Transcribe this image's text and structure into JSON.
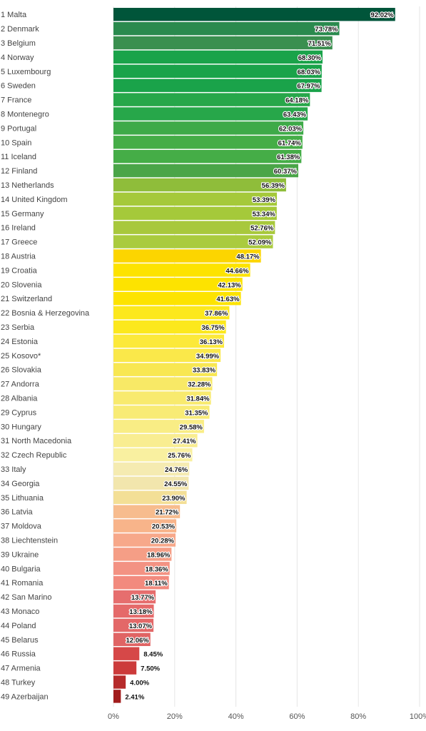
{
  "chart_data": {
    "type": "bar",
    "orientation": "horizontal",
    "xlim": [
      0,
      100
    ],
    "x_ticks": [
      "0%",
      "20%",
      "40%",
      "60%",
      "80%",
      "100%"
    ],
    "value_suffix": "%",
    "grid": true,
    "categories": [
      "1 Malta",
      "2 Denmark",
      "3 Belgium",
      "4 Norway",
      "5 Luxembourg",
      "6 Sweden",
      "7 France",
      "8 Montenegro",
      "9 Portugal",
      "10 Spain",
      "11 Iceland",
      "12 Finland",
      "13 Netherlands",
      "14 United Kingdom",
      "15 Germany",
      "16 Ireland",
      "17 Greece",
      "18 Austria",
      "19 Croatia",
      "20 Slovenia",
      "21 Switzerland",
      "22 Bosnia & Herzegovina",
      "23 Serbia",
      "24 Estonia",
      "25 Kosovo*",
      "26 Slovakia",
      "27 Andorra",
      "28 Albania",
      "29 Cyprus",
      "30 Hungary",
      "31 North Macedonia",
      "32 Czech Republic",
      "33 Italy",
      "34 Georgia",
      "35 Lithuania",
      "36 Latvia",
      "37 Moldova",
      "38 Liechtenstein",
      "39 Ukraine",
      "40 Bulgaria",
      "41 Romania",
      "42 San Marino",
      "43 Monaco",
      "44 Poland",
      "45 Belarus",
      "46 Russia",
      "47 Armenia",
      "48 Turkey",
      "49 Azerbaijan"
    ],
    "values": [
      92.02,
      73.78,
      71.51,
      68.3,
      68.03,
      67.97,
      64.18,
      63.43,
      62.03,
      61.74,
      61.38,
      60.37,
      56.39,
      53.39,
      53.34,
      52.76,
      52.09,
      48.17,
      44.66,
      42.13,
      41.63,
      37.86,
      36.75,
      36.13,
      34.99,
      33.83,
      32.28,
      31.84,
      31.35,
      29.58,
      27.41,
      25.76,
      24.76,
      24.55,
      23.9,
      21.72,
      20.53,
      20.28,
      18.96,
      18.36,
      18.11,
      13.77,
      13.18,
      13.07,
      12.06,
      8.45,
      7.5,
      4.0,
      2.41
    ],
    "colors": [
      "#00553a",
      "#2a8a4e",
      "#3a8f4f",
      "#1aa34a",
      "#1aa34a",
      "#1aa34a",
      "#27a74a",
      "#27a74a",
      "#3eaa48",
      "#45ad47",
      "#45ad47",
      "#4aa548",
      "#8fbd3a",
      "#a5c93a",
      "#a5c93a",
      "#a8c83c",
      "#aacb3e",
      "#fcd500",
      "#fde300",
      "#fde300",
      "#fde300",
      "#fce81d",
      "#fce81d",
      "#fce93a",
      "#fae84a",
      "#f8e752",
      "#f8e966",
      "#f8ea6e",
      "#f8eb75",
      "#f9ed85",
      "#f9ed91",
      "#f9f0a0",
      "#f5ebb1",
      "#f2e6ad",
      "#f3df96",
      "#f7bc8e",
      "#f8b48a",
      "#f7a88a",
      "#f59e86",
      "#f39283",
      "#f28a7e",
      "#e66e6e",
      "#e56a6a",
      "#e36868",
      "#e06464",
      "#d64848",
      "#cc3b3b",
      "#b62b2b",
      "#a11c1c"
    ]
  }
}
